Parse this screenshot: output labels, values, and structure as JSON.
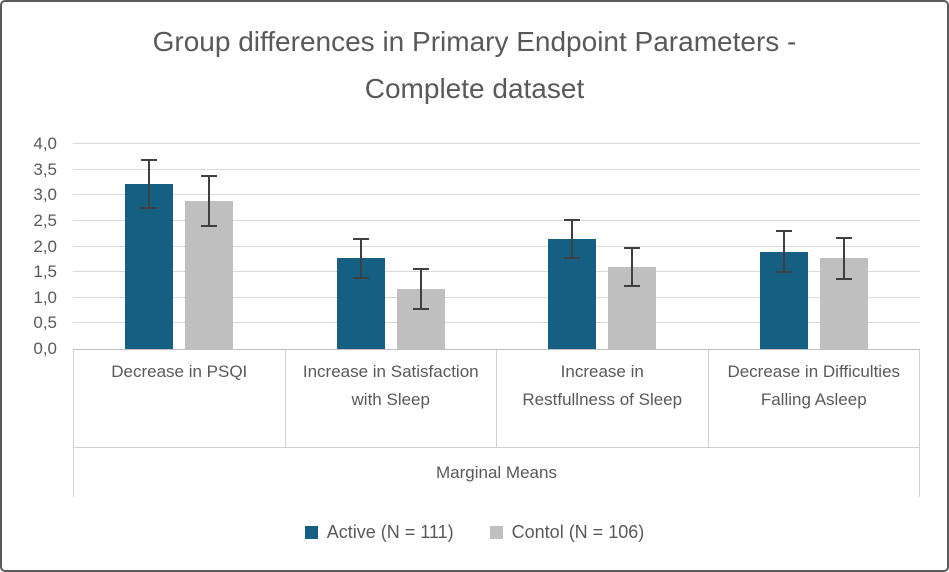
{
  "chart_data": {
    "type": "bar",
    "title": "Group differences in Primary Endpoint Parameters - Complete dataset",
    "categories": [
      "Decrease in PSQI",
      "Increase in Satisfaction with Sleep",
      "Increase in Restfullness of Sleep",
      "Decrease in Difficulties Falling Asleep"
    ],
    "series": [
      {
        "name": "Active (N = 111)",
        "color": "#156082",
        "values": [
          3.22,
          1.77,
          2.14,
          1.9
        ],
        "errors": [
          0.47,
          0.38,
          0.37,
          0.4
        ]
      },
      {
        "name": "Contol (N = 106)",
        "color": "#bfbfbf",
        "values": [
          2.89,
          1.17,
          1.6,
          1.77
        ],
        "errors": [
          0.49,
          0.39,
          0.38,
          0.4
        ]
      }
    ],
    "xlabel": "Marginal Means",
    "ylabel": "",
    "ylim": [
      0,
      4
    ],
    "ytick_step": 0.5,
    "ytick_labels": [
      "0,0",
      "0,5",
      "1,0",
      "1,5",
      "2,0",
      "2,5",
      "3,0",
      "3,5",
      "4,0"
    ],
    "decimal_separator": ",",
    "grid": true,
    "legend_position": "bottom",
    "error_bars": true,
    "colors": {
      "text": "#595959",
      "gridline": "#d9d9d9",
      "axis_line": "#bfbfbf",
      "error_bar": "#404040",
      "frame_border": "#5a5a5a",
      "background": "#ffffff"
    }
  }
}
